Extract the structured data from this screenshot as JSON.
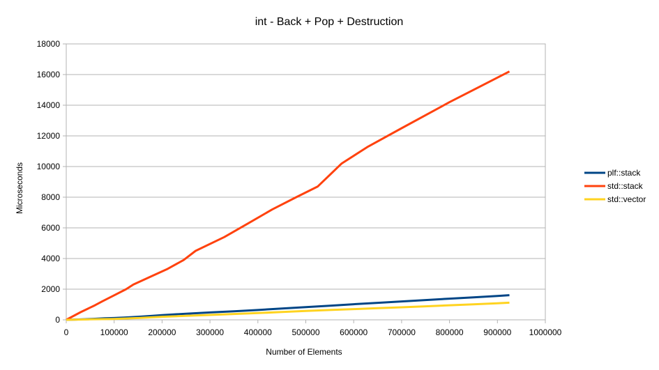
{
  "chart_data": {
    "type": "line",
    "title": "int - Back + Pop + Destruction",
    "xlabel": "Number of Elements",
    "ylabel": "Microseconds",
    "xlim": [
      0,
      1000000
    ],
    "ylim": [
      0,
      18000
    ],
    "xticks": [
      0,
      100000,
      200000,
      300000,
      400000,
      500000,
      600000,
      700000,
      800000,
      900000,
      1000000
    ],
    "yticks": [
      0,
      2000,
      4000,
      6000,
      8000,
      10000,
      12000,
      14000,
      16000,
      18000
    ],
    "grid": true,
    "legend_position": "right",
    "series": [
      {
        "name": "plf::stack",
        "color": "#004586",
        "points": [
          [
            0,
            0
          ],
          [
            20000,
            20
          ],
          [
            40000,
            40
          ],
          [
            60000,
            70
          ],
          [
            80000,
            100
          ],
          [
            100000,
            120
          ],
          [
            120000,
            150
          ],
          [
            150000,
            200
          ],
          [
            180000,
            260
          ],
          [
            200000,
            310
          ],
          [
            250000,
            400
          ],
          [
            300000,
            480
          ],
          [
            350000,
            560
          ],
          [
            400000,
            640
          ],
          [
            450000,
            740
          ],
          [
            500000,
            830
          ],
          [
            550000,
            920
          ],
          [
            600000,
            1020
          ],
          [
            650000,
            1110
          ],
          [
            700000,
            1200
          ],
          [
            750000,
            1290
          ],
          [
            800000,
            1380
          ],
          [
            850000,
            1470
          ],
          [
            900000,
            1560
          ],
          [
            925000,
            1610
          ]
        ]
      },
      {
        "name": "std::stack",
        "color": "#ff420e",
        "points": [
          [
            0,
            0
          ],
          [
            30000,
            500
          ],
          [
            60000,
            950
          ],
          [
            75000,
            1200
          ],
          [
            100000,
            1600
          ],
          [
            125000,
            2000
          ],
          [
            140000,
            2300
          ],
          [
            175000,
            2800
          ],
          [
            210000,
            3300
          ],
          [
            245000,
            3900
          ],
          [
            270000,
            4500
          ],
          [
            330000,
            5400
          ],
          [
            380000,
            6300
          ],
          [
            430000,
            7200
          ],
          [
            480000,
            8000
          ],
          [
            525000,
            8700
          ],
          [
            575000,
            10200
          ],
          [
            630000,
            11300
          ],
          [
            700000,
            12500
          ],
          [
            800000,
            14200
          ],
          [
            925000,
            16200
          ]
        ]
      },
      {
        "name": "std::vector",
        "color": "#ffd320",
        "points": [
          [
            0,
            0
          ],
          [
            50000,
            30
          ],
          [
            100000,
            60
          ],
          [
            150000,
            120
          ],
          [
            200000,
            200
          ],
          [
            250000,
            260
          ],
          [
            300000,
            320
          ],
          [
            350000,
            380
          ],
          [
            400000,
            440
          ],
          [
            450000,
            510
          ],
          [
            500000,
            580
          ],
          [
            550000,
            640
          ],
          [
            600000,
            700
          ],
          [
            650000,
            760
          ],
          [
            700000,
            820
          ],
          [
            750000,
            880
          ],
          [
            800000,
            950
          ],
          [
            850000,
            1010
          ],
          [
            900000,
            1080
          ],
          [
            925000,
            1120
          ]
        ]
      }
    ]
  }
}
